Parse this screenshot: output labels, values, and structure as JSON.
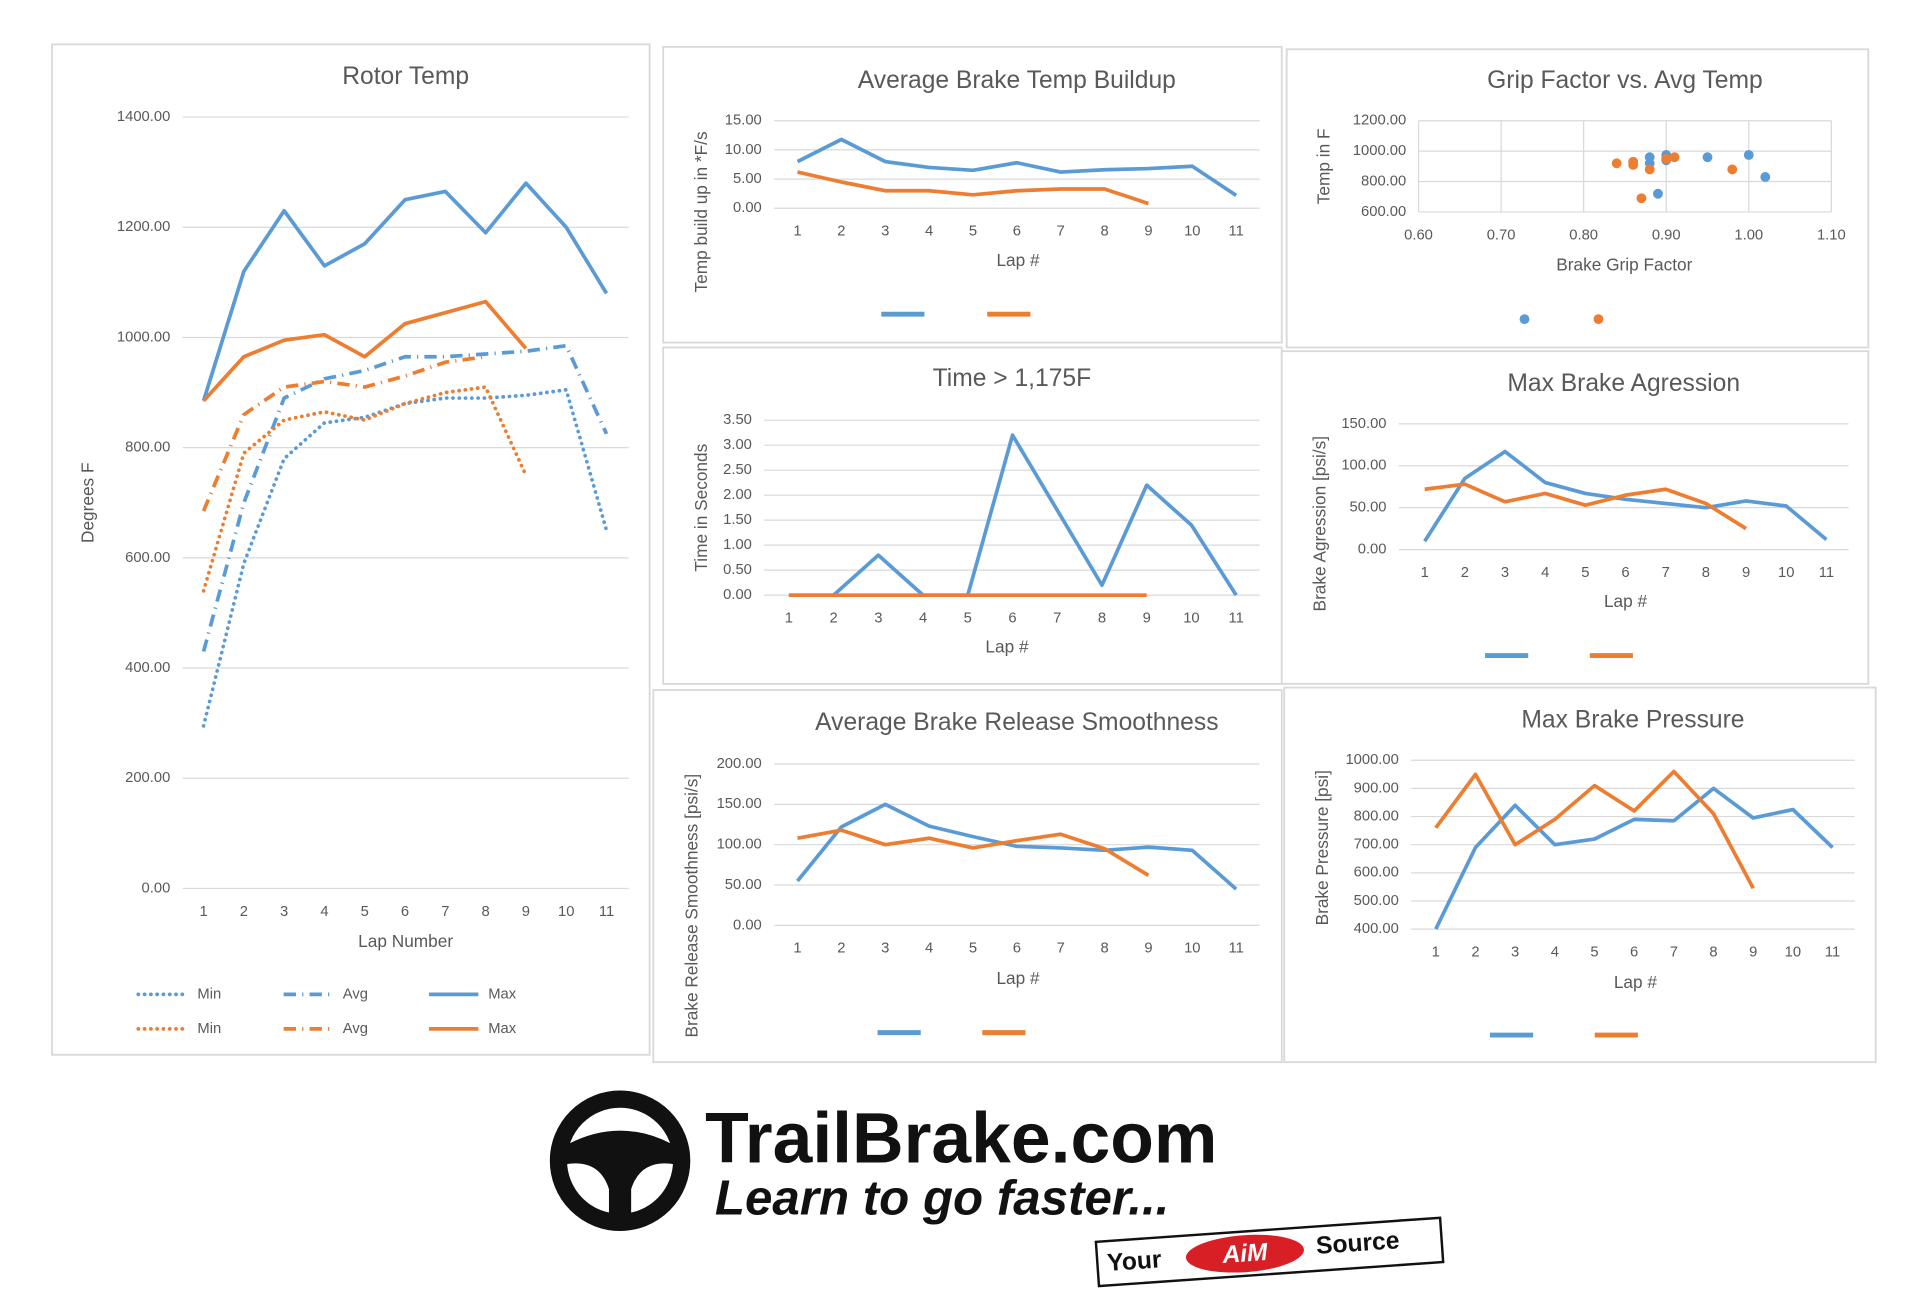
{
  "chart_data": [
    {
      "type": "line",
      "title": "Rotor Temp",
      "x_label": "Lap Number",
      "y_label": "Degrees F",
      "categories": [
        1,
        2,
        3,
        4,
        5,
        6,
        7,
        8,
        9,
        10,
        11
      ],
      "ylim": [
        0,
        1400
      ],
      "yticks": [
        {
          "value": 0,
          "label": "0.00"
        },
        {
          "value": 200,
          "label": "200.00"
        },
        {
          "value": 400,
          "label": "400.00"
        },
        {
          "value": 600,
          "label": "600.00"
        },
        {
          "value": 800,
          "label": "800.00"
        },
        {
          "value": 1000,
          "label": "1000.00"
        },
        {
          "value": 1200,
          "label": "1200.00"
        },
        {
          "value": 1400,
          "label": "1400.00"
        }
      ],
      "grid": true,
      "series": [
        {
          "name": "Min",
          "color": "#5b9bd5",
          "style": "dotted",
          "values": [
            295,
            590,
            780,
            845,
            855,
            880,
            890,
            890,
            895,
            905,
            650
          ]
        },
        {
          "name": "Avg",
          "color": "#5b9bd5",
          "style": "dashdot",
          "values": [
            430,
            700,
            890,
            925,
            940,
            965,
            965,
            970,
            975,
            985,
            825
          ]
        },
        {
          "name": "Max",
          "color": "#5b9bd5",
          "style": "solid",
          "values": [
            885,
            1120,
            1230,
            1130,
            1170,
            1250,
            1265,
            1190,
            1280,
            1200,
            1080
          ]
        },
        {
          "name": "Min",
          "color": "#ed7d31",
          "style": "dotted",
          "values": [
            540,
            790,
            850,
            865,
            850,
            880,
            900,
            910,
            750,
            null,
            null
          ]
        },
        {
          "name": "Avg",
          "color": "#ed7d31",
          "style": "dashdot",
          "values": [
            685,
            860,
            910,
            920,
            910,
            930,
            955,
            965,
            null,
            null,
            null
          ]
        },
        {
          "name": "Max",
          "color": "#ed7d31",
          "style": "solid",
          "values": [
            885,
            965,
            995,
            1005,
            965,
            1025,
            1045,
            1065,
            980,
            null,
            null
          ]
        }
      ]
    },
    {
      "type": "line",
      "title": "Average Brake Temp Buildup",
      "x_label": "Lap #",
      "y_label": "Temp build up in *F/s",
      "categories": [
        1,
        2,
        3,
        4,
        5,
        6,
        7,
        8,
        9,
        10,
        11
      ],
      "ylim": [
        0,
        15
      ],
      "yticks": [
        {
          "value": 0,
          "label": "0.00"
        },
        {
          "value": 5,
          "label": "5.00"
        },
        {
          "value": 10,
          "label": "10.00"
        },
        {
          "value": 15,
          "label": "15.00"
        }
      ],
      "grid": true,
      "series": [
        {
          "color": "#5b9bd5",
          "values": [
            8,
            11.8,
            8,
            7,
            6.5,
            7.8,
            6.2,
            6.6,
            6.8,
            7.2,
            2.2
          ]
        },
        {
          "color": "#ed7d31",
          "values": [
            6.2,
            4.5,
            3,
            3,
            2.3,
            3,
            3.3,
            3.3,
            0.8,
            null,
            null
          ]
        }
      ]
    },
    {
      "type": "scatter",
      "title": "Grip Factor vs. Avg Temp",
      "x_label": "Brake Grip Factor",
      "y_label": "Temp in F",
      "xlim": [
        0.6,
        1.1
      ],
      "xticks": [
        {
          "value": 0.6,
          "label": "0.60"
        },
        {
          "value": 0.7,
          "label": "0.70"
        },
        {
          "value": 0.8,
          "label": "0.80"
        },
        {
          "value": 0.9,
          "label": "0.90"
        },
        {
          "value": 1.0,
          "label": "1.00"
        },
        {
          "value": 1.1,
          "label": "1.10"
        }
      ],
      "ylim": [
        600,
        1200
      ],
      "yticks": [
        {
          "value": 600,
          "label": "600.00"
        },
        {
          "value": 800,
          "label": "800.00"
        },
        {
          "value": 1000,
          "label": "1000.00"
        },
        {
          "value": 1200,
          "label": "1200.00"
        }
      ],
      "grid": true,
      "series": [
        {
          "color": "#5b9bd5",
          "x": [
            0.88,
            0.88,
            0.89,
            0.9,
            0.9,
            0.95,
            1.0,
            1.02
          ],
          "values": [
            960,
            920,
            720,
            975,
            940,
            960,
            975,
            830
          ]
        },
        {
          "color": "#ed7d31",
          "x": [
            0.84,
            0.86,
            0.86,
            0.87,
            0.88,
            0.9,
            0.91,
            0.98
          ],
          "values": [
            920,
            930,
            910,
            690,
            880,
            950,
            960,
            880
          ]
        }
      ]
    },
    {
      "type": "line",
      "title": "Time > 1,175F",
      "x_label": "Lap #",
      "y_label": "Time in Seconds",
      "categories": [
        1,
        2,
        3,
        4,
        5,
        6,
        7,
        8,
        9,
        10,
        11
      ],
      "ylim": [
        0,
        3.5
      ],
      "yticks": [
        {
          "value": 0,
          "label": "0.00"
        },
        {
          "value": 0.5,
          "label": "0.50"
        },
        {
          "value": 1,
          "label": "1.00"
        },
        {
          "value": 1.5,
          "label": "1.50"
        },
        {
          "value": 2,
          "label": "2.00"
        },
        {
          "value": 2.5,
          "label": "2.50"
        },
        {
          "value": 3,
          "label": "3.00"
        },
        {
          "value": 3.5,
          "label": "3.50"
        }
      ],
      "grid": true,
      "series": [
        {
          "color": "#5b9bd5",
          "values": [
            0,
            0,
            0.8,
            0,
            0,
            3.2,
            1.7,
            0.2,
            2.2,
            1.4,
            0
          ]
        },
        {
          "color": "#ed7d31",
          "values": [
            0,
            0,
            0,
            0,
            0,
            0,
            0,
            0,
            0,
            null,
            null
          ]
        }
      ]
    },
    {
      "type": "line",
      "title": "Max Brake Agression",
      "x_label": "Lap #",
      "y_label": "Brake Agression [psi/s]",
      "categories": [
        1,
        2,
        3,
        4,
        5,
        6,
        7,
        8,
        9,
        10,
        11
      ],
      "ylim": [
        0,
        150
      ],
      "yticks": [
        {
          "value": 0,
          "label": "0.00"
        },
        {
          "value": 50,
          "label": "50.00"
        },
        {
          "value": 100,
          "label": "100.00"
        },
        {
          "value": 150,
          "label": "150.00"
        }
      ],
      "grid": true,
      "series": [
        {
          "color": "#5b9bd5",
          "values": [
            10,
            85,
            117,
            80,
            67,
            60,
            55,
            50,
            58,
            52,
            12
          ]
        },
        {
          "color": "#ed7d31",
          "values": [
            72,
            78,
            57,
            67,
            53,
            65,
            72,
            55,
            25,
            null,
            null
          ]
        }
      ]
    },
    {
      "type": "line",
      "title": "Average Brake Release Smoothness",
      "x_label": "Lap #",
      "y_label": "Brake Release Smoothness [psi/s]",
      "categories": [
        1,
        2,
        3,
        4,
        5,
        6,
        7,
        8,
        9,
        10,
        11
      ],
      "ylim": [
        0,
        200
      ],
      "yticks": [
        {
          "value": 0,
          "label": "0.00"
        },
        {
          "value": 50,
          "label": "50.00"
        },
        {
          "value": 100,
          "label": "100.00"
        },
        {
          "value": 150,
          "label": "150.00"
        },
        {
          "value": 200,
          "label": "200.00"
        }
      ],
      "grid": true,
      "series": [
        {
          "color": "#5b9bd5",
          "values": [
            55,
            122,
            150,
            123,
            110,
            98,
            96,
            93,
            97,
            93,
            45
          ]
        },
        {
          "color": "#ed7d31",
          "values": [
            108,
            118,
            100,
            108,
            96,
            105,
            113,
            95,
            62,
            null,
            null
          ]
        }
      ]
    },
    {
      "type": "line",
      "title": "Max Brake Pressure",
      "x_label": "Lap #",
      "y_label": "Brake Pressure [psi]",
      "categories": [
        1,
        2,
        3,
        4,
        5,
        6,
        7,
        8,
        9,
        10,
        11
      ],
      "ylim": [
        400,
        1000
      ],
      "yticks": [
        {
          "value": 400,
          "label": "400.00"
        },
        {
          "value": 500,
          "label": "500.00"
        },
        {
          "value": 600,
          "label": "600.00"
        },
        {
          "value": 700,
          "label": "700.00"
        },
        {
          "value": 800,
          "label": "800.00"
        },
        {
          "value": 900,
          "label": "900.00"
        },
        {
          "value": 1000,
          "label": "1000.00"
        }
      ],
      "grid": true,
      "series": [
        {
          "color": "#5b9bd5",
          "values": [
            400,
            690,
            840,
            700,
            720,
            790,
            785,
            900,
            795,
            825,
            690
          ]
        },
        {
          "color": "#ed7d31",
          "values": [
            760,
            950,
            700,
            790,
            910,
            820,
            960,
            810,
            545,
            null,
            null
          ]
        }
      ]
    }
  ],
  "logo": {
    "brand": "TrailBrake.com",
    "tagline": "Learn to go faster...",
    "badge_left": "Your",
    "badge_mid": "AiM",
    "badge_right": "Source"
  }
}
